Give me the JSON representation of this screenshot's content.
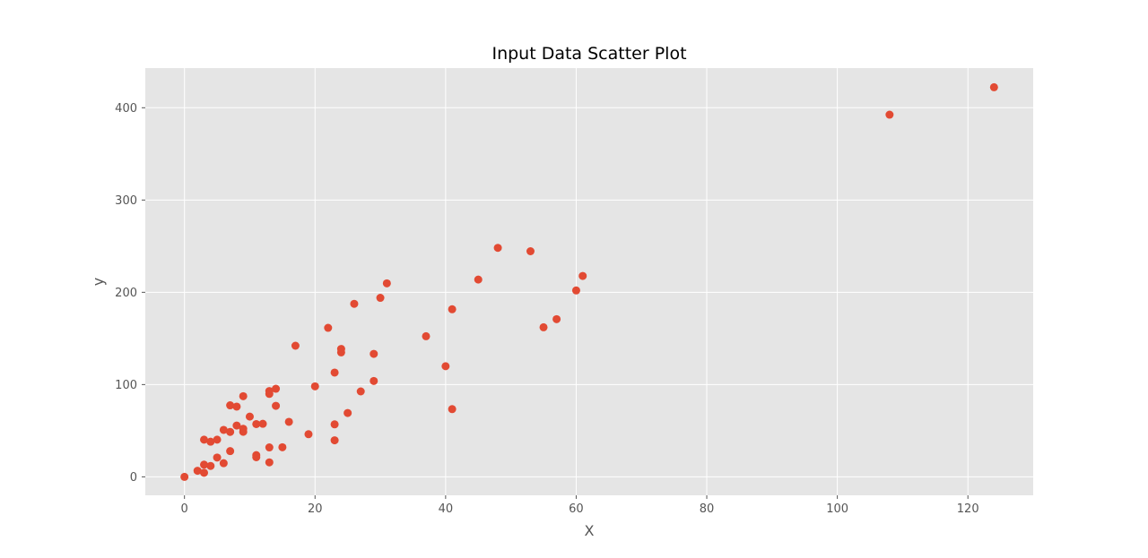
{
  "chart_data": {
    "type": "scatter",
    "title": "Input Data Scatter Plot",
    "xlabel": "X",
    "ylabel": "y",
    "xlim": [
      -6,
      130
    ],
    "ylim": [
      -20,
      443
    ],
    "xticks": [
      0,
      20,
      40,
      60,
      80,
      100,
      120
    ],
    "yticks": [
      0,
      100,
      200,
      300,
      400
    ],
    "grid": true,
    "colors": {
      "background": "#e5e5e5",
      "grid": "#ffffff",
      "marker": "#e24a33",
      "tick": "#555555"
    },
    "points": [
      {
        "x": 108,
        "y": 392.5
      },
      {
        "x": 124,
        "y": 422.2
      },
      {
        "x": 48,
        "y": 248.2
      },
      {
        "x": 53,
        "y": 244.5
      },
      {
        "x": 61,
        "y": 217.7
      },
      {
        "x": 45,
        "y": 213.8
      },
      {
        "x": 31,
        "y": 209.7
      },
      {
        "x": 60,
        "y": 202.0
      },
      {
        "x": 30,
        "y": 194.0
      },
      {
        "x": 26,
        "y": 187.5
      },
      {
        "x": 41,
        "y": 181.6
      },
      {
        "x": 57,
        "y": 170.9
      },
      {
        "x": 55,
        "y": 162.1
      },
      {
        "x": 22,
        "y": 161.5
      },
      {
        "x": 37,
        "y": 152.4
      },
      {
        "x": 17,
        "y": 142.1
      },
      {
        "x": 24,
        "y": 138.6
      },
      {
        "x": 24,
        "y": 134.9
      },
      {
        "x": 29,
        "y": 133.3
      },
      {
        "x": 40,
        "y": 119.9
      },
      {
        "x": 23,
        "y": 113.0
      },
      {
        "x": 29,
        "y": 103.9
      },
      {
        "x": 20,
        "y": 98.1
      },
      {
        "x": 14,
        "y": 95.5
      },
      {
        "x": 27,
        "y": 92.6
      },
      {
        "x": 13,
        "y": 93.0
      },
      {
        "x": 13,
        "y": 89.9
      },
      {
        "x": 9,
        "y": 87.4
      },
      {
        "x": 7,
        "y": 77.5
      },
      {
        "x": 8,
        "y": 76.1
      },
      {
        "x": 14,
        "y": 77.0
      },
      {
        "x": 41,
        "y": 73.4
      },
      {
        "x": 25,
        "y": 69.2
      },
      {
        "x": 10,
        "y": 65.3
      },
      {
        "x": 16,
        "y": 59.6
      },
      {
        "x": 11,
        "y": 57.2
      },
      {
        "x": 12,
        "y": 57.5
      },
      {
        "x": 23,
        "y": 56.9
      },
      {
        "x": 8,
        "y": 55.6
      },
      {
        "x": 6,
        "y": 50.9
      },
      {
        "x": 9,
        "y": 52.1
      },
      {
        "x": 9,
        "y": 48.8
      },
      {
        "x": 7,
        "y": 48.7
      },
      {
        "x": 19,
        "y": 46.2
      },
      {
        "x": 3,
        "y": 40.3
      },
      {
        "x": 5,
        "y": 40.3
      },
      {
        "x": 4,
        "y": 38.1
      },
      {
        "x": 23,
        "y": 39.6
      },
      {
        "x": 13,
        "y": 31.9
      },
      {
        "x": 15,
        "y": 32.1
      },
      {
        "x": 7,
        "y": 27.9
      },
      {
        "x": 11,
        "y": 23.5
      },
      {
        "x": 11,
        "y": 21.3
      },
      {
        "x": 5,
        "y": 20.9
      },
      {
        "x": 6,
        "y": 14.8
      },
      {
        "x": 13,
        "y": 15.7
      },
      {
        "x": 3,
        "y": 13.2
      },
      {
        "x": 4,
        "y": 11.8
      },
      {
        "x": 2,
        "y": 6.6
      },
      {
        "x": 3,
        "y": 4.4
      },
      {
        "x": 0,
        "y": 0.0
      }
    ]
  }
}
